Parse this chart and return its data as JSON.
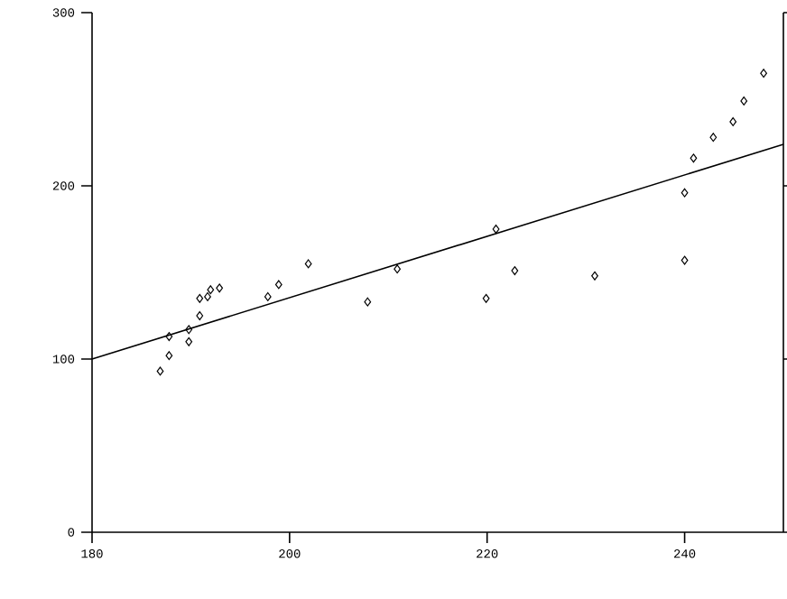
{
  "chart_data": {
    "type": "scatter",
    "xlim": [
      180,
      250
    ],
    "ylim": [
      0,
      300
    ],
    "xticks": [
      180,
      200,
      220,
      240
    ],
    "yticks": [
      0,
      100,
      200,
      300
    ],
    "grid": false,
    "series": [
      {
        "marker": "diamond",
        "color": "#000000",
        "x": [
          186.9,
          187.8,
          187.8,
          189.8,
          189.8,
          190.9,
          190.9,
          191.7,
          192.0,
          192.9,
          197.8,
          198.9,
          201.9,
          207.9,
          210.9,
          219.9,
          220.9,
          222.8,
          230.9,
          240.0,
          240.0,
          240.9,
          242.9,
          244.9,
          246.0,
          248.0
        ],
        "values": [
          93,
          102,
          113,
          110,
          117,
          125,
          135,
          136,
          140,
          141,
          136,
          143,
          155,
          133,
          152,
          135,
          175,
          151,
          148,
          157,
          196,
          216,
          228,
          237,
          249,
          265
        ]
      },
      {
        "type": "line",
        "marker": "none",
        "color": "#000000",
        "x": [
          180,
          250
        ],
        "values": [
          100,
          224
        ]
      }
    ]
  }
}
